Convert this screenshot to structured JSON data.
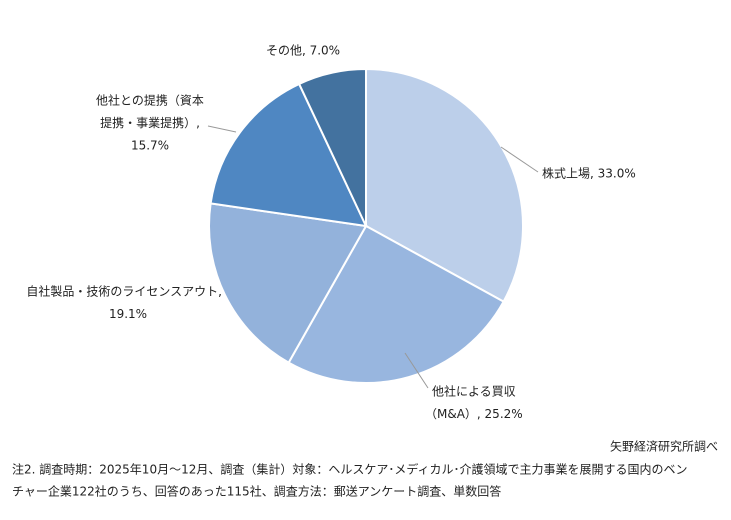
{
  "chart_data": {
    "type": "pie",
    "values": [
      33.0,
      25.2,
      19.1,
      15.7,
      7.0
    ],
    "value_labels": [
      [
        "株式上場, 33.0%"
      ],
      [
        "他社による買収",
        "（M&A）, 25.2%"
      ],
      [
        "自社製品・技術のライセンスアウト,",
        "19.1%"
      ],
      [
        "他社との提携（資本",
        "提携・事業提携）,",
        "15.7%"
      ],
      [
        "その他, 7.0%"
      ]
    ],
    "colors": [
      "#bccfea",
      "#98b6df",
      "#93b2db",
      "#4f87c2",
      "#43729f"
    ],
    "source": "矢野経済研究所調べ",
    "notes": [
      "注2. 調査時期：2025年10月～12月、調査（集計）対象：ヘルスケア･メディカル･介護領域で主力事業を展開する国内のベン",
      "チャー企業122社のうち、回答のあった115社、調査方法：郵送アンケート調査、単数回答"
    ]
  }
}
